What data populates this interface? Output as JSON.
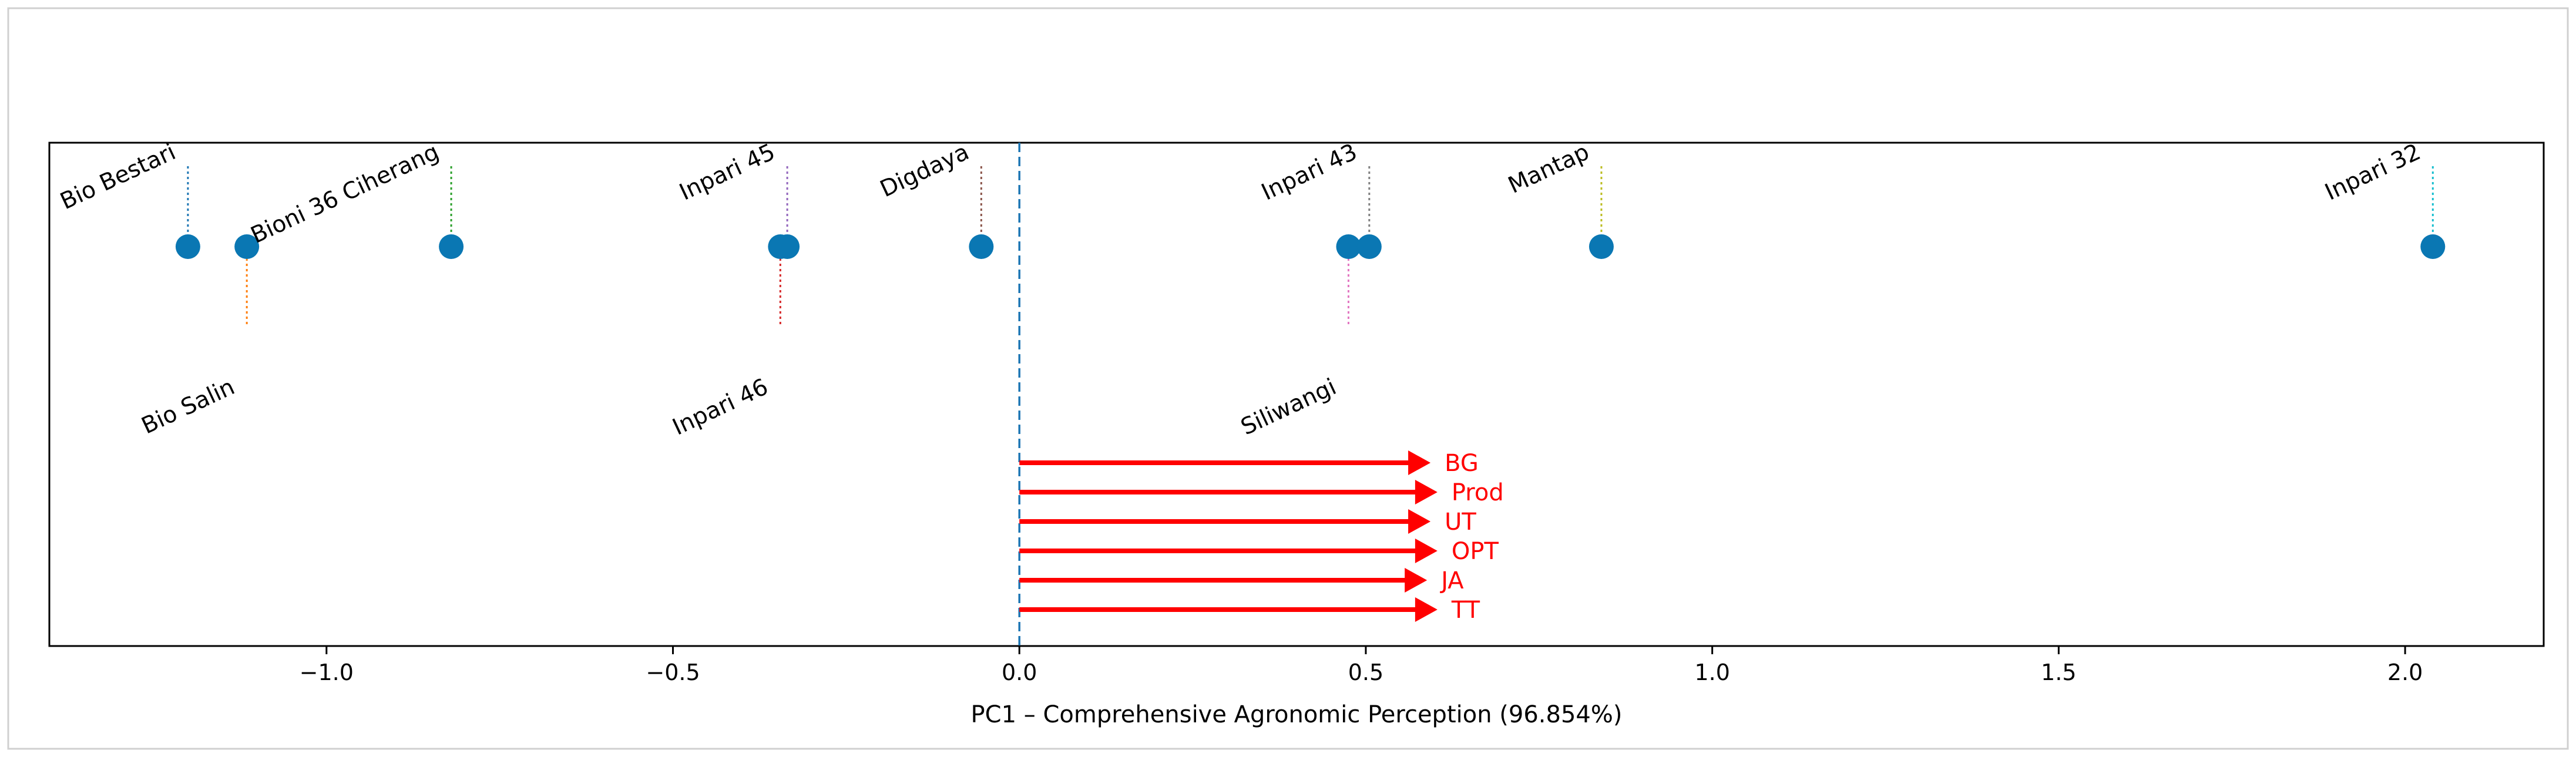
{
  "chart_data": {
    "type": "scatter",
    "xlabel": "PC1 – Comprehensive Agronomic Perception (96.854%)",
    "xlim": [
      -1.4,
      2.2
    ],
    "xticks": [
      -1.0,
      -0.5,
      0.0,
      0.5,
      1.0,
      1.5,
      2.0
    ],
    "xtick_labels": [
      "−1.0",
      "−0.5",
      "0.0",
      "0.5",
      "1.0",
      "1.5",
      "2.0"
    ],
    "reference_line_x": 0.0,
    "point_color": "#0a77b3",
    "arrow_color": "#ff0000",
    "points": [
      {
        "name": "Bio Bestari",
        "x": -1.2,
        "label_side": "above",
        "stem_color": "#1f77b4"
      },
      {
        "name": "Bio Salin",
        "x": -1.115,
        "label_side": "below",
        "stem_color": "#ff7f0e"
      },
      {
        "name": "Bioni 36 Ciherang",
        "x": -0.82,
        "label_side": "above",
        "stem_color": "#2ca02c"
      },
      {
        "name": "Inpari 46",
        "x": -0.345,
        "label_side": "below",
        "stem_color": "#d62728"
      },
      {
        "name": "Inpari 45",
        "x": -0.335,
        "label_side": "above",
        "stem_color": "#9467bd"
      },
      {
        "name": "Digdaya",
        "x": -0.055,
        "label_side": "above",
        "stem_color": "#8c564b"
      },
      {
        "name": "Siliwangi",
        "x": 0.475,
        "label_side": "below",
        "stem_color": "#e377c2"
      },
      {
        "name": "Inpari 43",
        "x": 0.505,
        "label_side": "above",
        "stem_color": "#7f7f7f"
      },
      {
        "name": "Mantap",
        "x": 0.84,
        "label_side": "above",
        "stem_color": "#bcbd22"
      },
      {
        "name": "Inpari 32",
        "x": 2.04,
        "label_side": "above",
        "stem_color": "#17becf"
      }
    ],
    "loadings": [
      {
        "name": "BG",
        "x": 0.59
      },
      {
        "name": "Prod",
        "x": 0.6
      },
      {
        "name": "UT",
        "x": 0.59
      },
      {
        "name": "OPT",
        "x": 0.6
      },
      {
        "name": "JA",
        "x": 0.585
      },
      {
        "name": "TT",
        "x": 0.6
      }
    ]
  }
}
